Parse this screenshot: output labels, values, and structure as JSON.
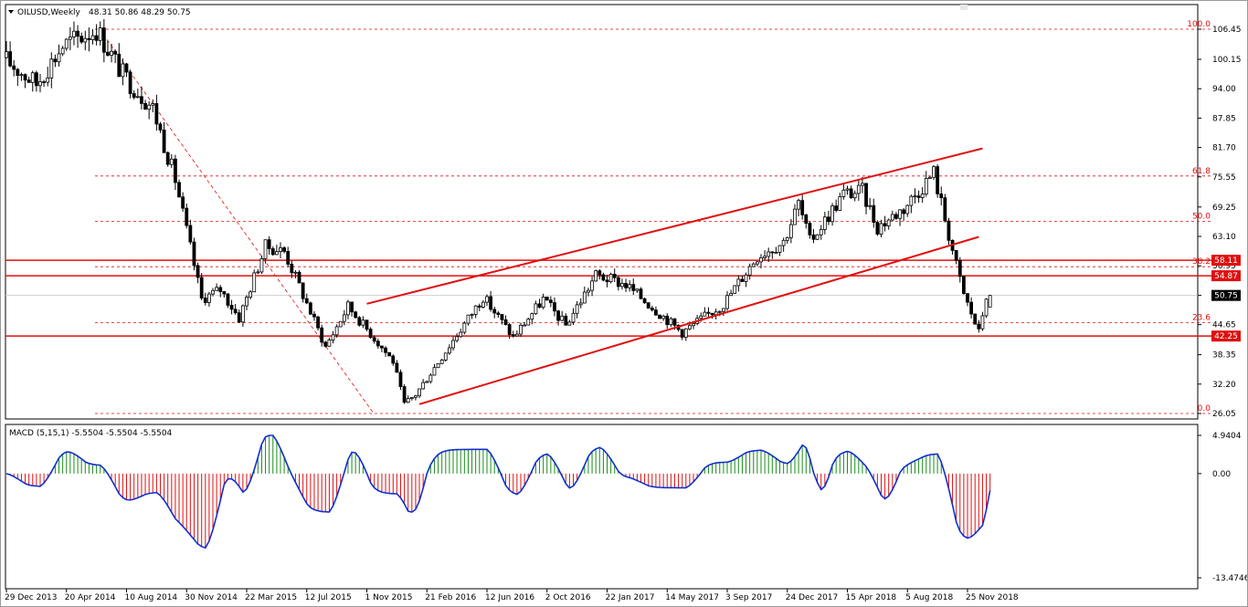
{
  "symbol_header": {
    "menu_icon": "triangle-down-icon",
    "title": "OILUSD,Weekly",
    "ohlc": "48.31 50.86 48.29 50.75"
  },
  "price_axis": {
    "ticks": [
      "106.45",
      "100.15",
      "94.00",
      "87.85",
      "81.70",
      "75.55",
      "69.25",
      "63.10",
      "56.95",
      "50.75",
      "44.65",
      "38.35",
      "32.20",
      "26.05"
    ]
  },
  "price_tags": [
    {
      "label": "58.11",
      "value": 58.11,
      "color": "#e01010"
    },
    {
      "label": "54.87",
      "value": 54.87,
      "color": "#e01010"
    },
    {
      "label": "50.75",
      "value": 50.75,
      "color": "#000000"
    },
    {
      "label": "42.25",
      "value": 42.25,
      "color": "#e01010"
    }
  ],
  "fibonacci": {
    "color": "#e01010",
    "high_price": 106.45,
    "low_price": 26.05,
    "levels": [
      {
        "label": "100.0"
      },
      {
        "label": "61.8"
      },
      {
        "label": "50.0"
      },
      {
        "label": "38.2"
      },
      {
        "label": "23.6"
      },
      {
        "label": "0.0"
      }
    ]
  },
  "horizontal_lines": [
    58.11,
    54.87,
    42.25
  ],
  "time_axis": {
    "labels": [
      "29 Dec 2013",
      "20 Apr 2014",
      "10 Aug 2014",
      "30 Nov 2014",
      "22 Mar 2015",
      "12 Jul 2015",
      "1 Nov 2015",
      "21 Feb 2016",
      "12 Jun 2016",
      "2 Oct 2016",
      "22 Jan 2017",
      "14 May 2017",
      "3 Sep 2017",
      "24 Dec 2017",
      "15 Apr 2018",
      "5 Aug 2018",
      "25 Nov 2018"
    ]
  },
  "macd": {
    "title": "MACD (5,15,1) -5.5504 -5.5504 -5.5504",
    "ticks": [
      "4.9404",
      "0.00",
      "-13.4746"
    ],
    "max": 4.9404,
    "min": -13.4746,
    "positive_color": "#1a8c1a",
    "negative_color": "#e01010",
    "line_color": "#1030d0"
  },
  "chart_data": {
    "type": "candlestick",
    "symbol": "OILUSD",
    "timeframe": "Weekly",
    "ylim": [
      26.05,
      106.45
    ],
    "anchors": [
      {
        "date": "29 Dec 2013",
        "price": 100.5
      },
      {
        "date": "2 Mar 2014",
        "price": 95.0
      },
      {
        "date": "20 Apr 2014",
        "price": 103.0
      },
      {
        "date": "22 Jun 2014",
        "price": 106.45
      },
      {
        "date": "10 Aug 2014",
        "price": 97.0
      },
      {
        "date": "5 Oct 2014",
        "price": 90.0
      },
      {
        "date": "16 Nov 2014",
        "price": 75.0
      },
      {
        "date": "4 Jan 2015",
        "price": 50.0
      },
      {
        "date": "8 Feb 2015",
        "price": 52.0
      },
      {
        "date": "15 Mar 2015",
        "price": 46.0
      },
      {
        "date": "3 May 2015",
        "price": 61.0
      },
      {
        "date": "7 Jun 2015",
        "price": 60.0
      },
      {
        "date": "23 Aug 2015",
        "price": 40.0
      },
      {
        "date": "4 Oct 2015",
        "price": 48.5
      },
      {
        "date": "27 Dec 2015",
        "price": 37.0
      },
      {
        "date": "17 Jan 2016",
        "price": 28.0
      },
      {
        "date": "7 Feb 2016",
        "price": 30.0
      },
      {
        "date": "12 Jun 2016",
        "price": 50.5
      },
      {
        "date": "7 Aug 2016",
        "price": 42.0
      },
      {
        "date": "2 Oct 2016",
        "price": 50.0
      },
      {
        "date": "13 Nov 2016",
        "price": 44.5
      },
      {
        "date": "8 Jan 2017",
        "price": 55.0
      },
      {
        "date": "5 Mar 2017",
        "price": 53.0
      },
      {
        "date": "18 Jun 2017",
        "price": 43.0
      },
      {
        "date": "3 Sep 2017",
        "price": 49.0
      },
      {
        "date": "5 Nov 2017",
        "price": 59.0
      },
      {
        "date": "24 Dec 2017",
        "price": 62.0
      },
      {
        "date": "21 Jan 2018",
        "price": 70.0
      },
      {
        "date": "11 Feb 2018",
        "price": 62.0
      },
      {
        "date": "15 Apr 2018",
        "price": 72.0
      },
      {
        "date": "20 May 2018",
        "price": 72.5
      },
      {
        "date": "17 Jun 2018",
        "price": 65.0
      },
      {
        "date": "5 Aug 2018",
        "price": 69.0
      },
      {
        "date": "30 Sep 2018",
        "price": 76.5
      },
      {
        "date": "11 Nov 2018",
        "price": 57.0
      },
      {
        "date": "25 Nov 2018",
        "price": 51.0
      },
      {
        "date": "23 Dec 2018",
        "price": 43.0
      },
      {
        "date": "6 Jan 2019",
        "price": 50.75
      }
    ],
    "last_bar": {
      "open": 48.31,
      "high": 50.86,
      "low": 48.29,
      "close": 50.75
    }
  }
}
